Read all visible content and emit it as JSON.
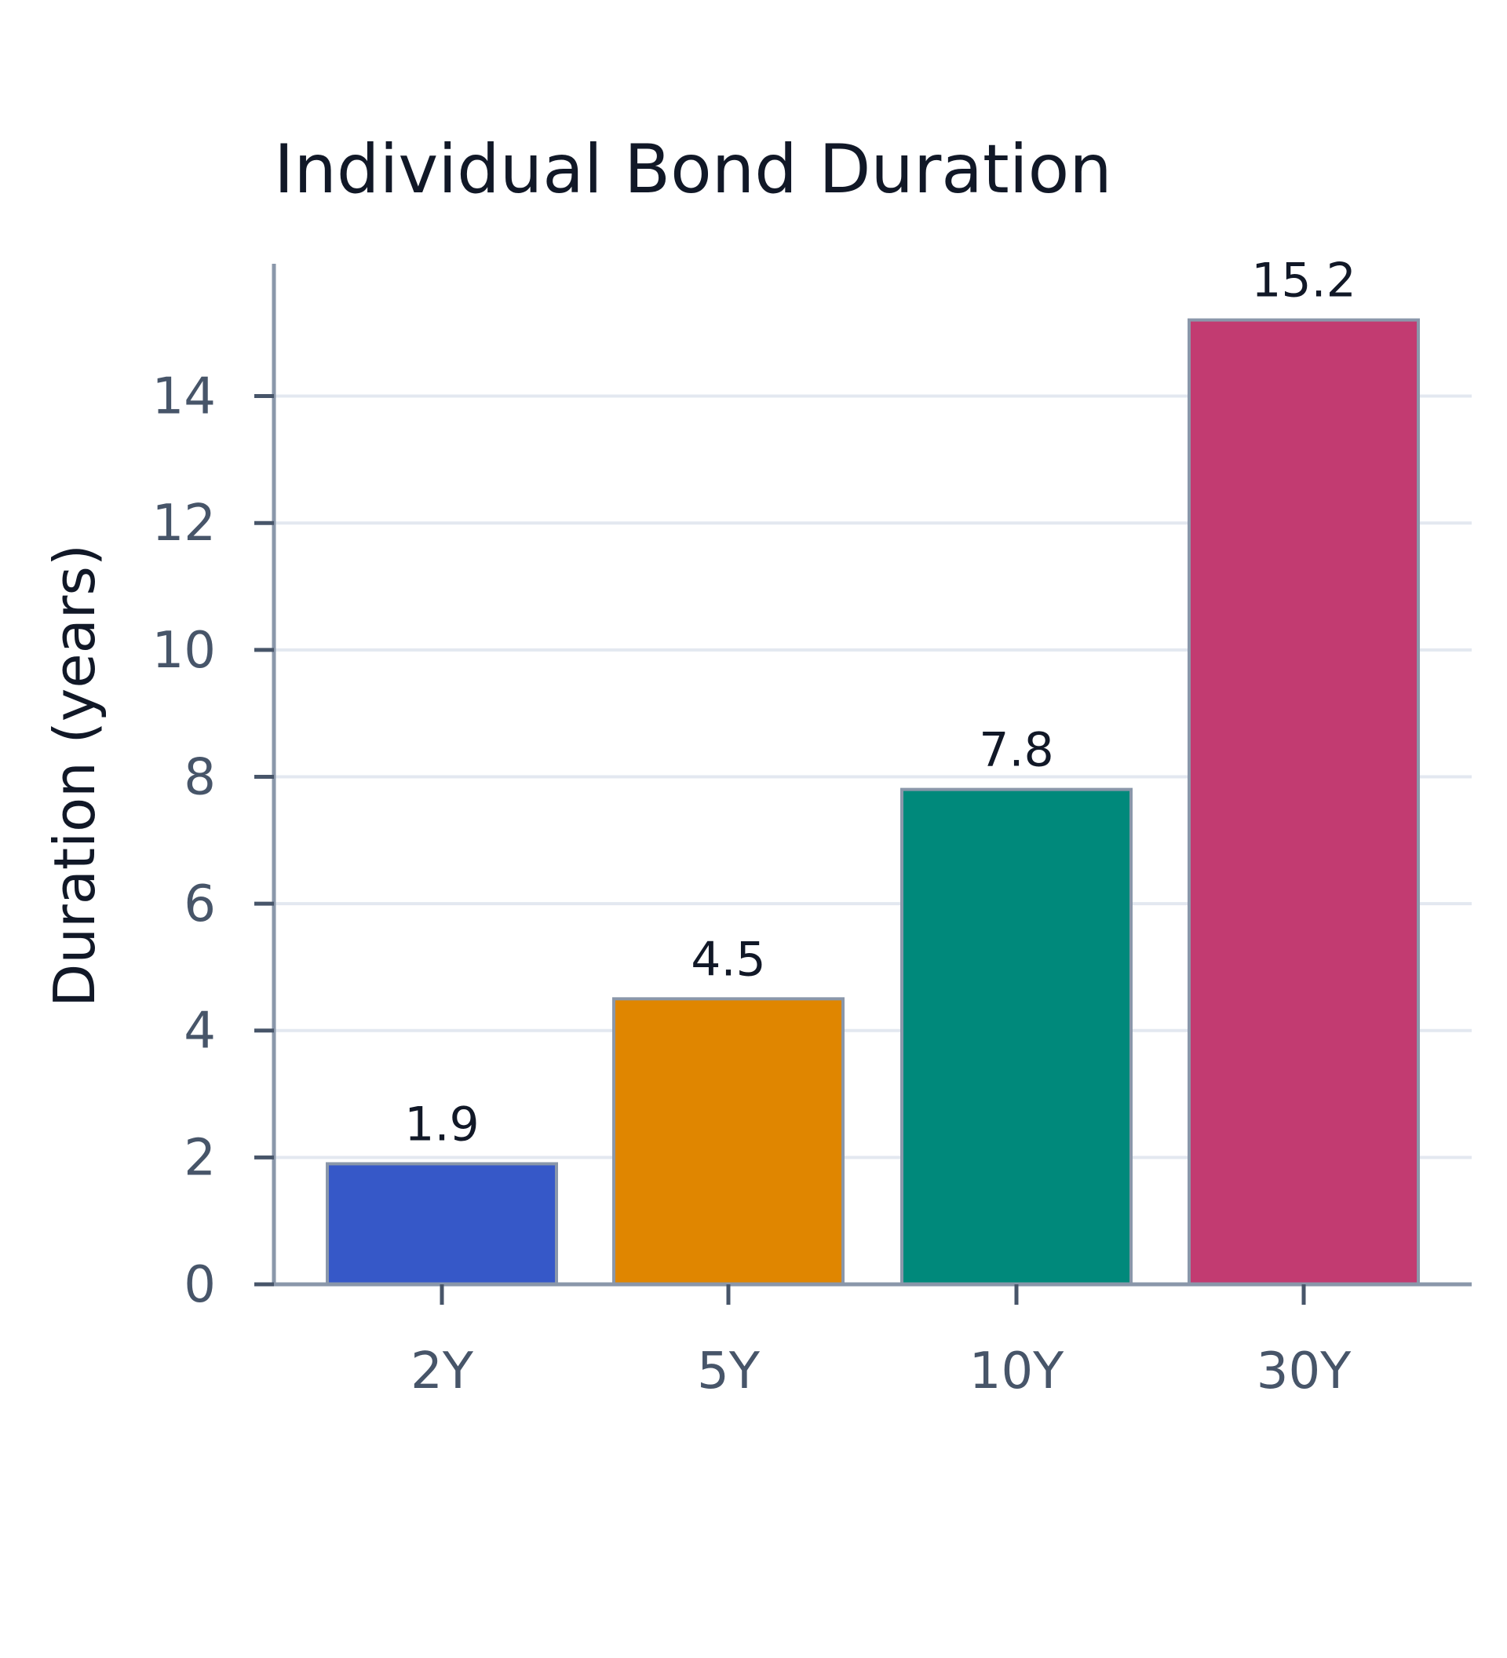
{
  "chart_data": {
    "type": "bar",
    "title": "Individual Bond Duration",
    "xlabel": "",
    "ylabel": "Duration (years)",
    "categories": [
      "2Y",
      "5Y",
      "10Y",
      "30Y"
    ],
    "values": [
      1.9,
      4.5,
      7.8,
      15.2
    ],
    "data_labels": [
      "1.9",
      "4.5",
      "7.8",
      "15.2"
    ],
    "colors": [
      "#3658C8",
      "#E08600",
      "#00897B",
      "#C23B71"
    ],
    "ylim": [
      0,
      15.9
    ],
    "yticks": [
      0,
      2,
      4,
      6,
      8,
      10,
      12,
      14
    ],
    "ytick_labels": [
      "0",
      "2",
      "4",
      "6",
      "8",
      "10",
      "12",
      "14"
    ],
    "grid": true,
    "legend": false
  },
  "style": {
    "axis_color": "#8A97AA",
    "grid_color": "#E3E8F0",
    "bar_edge_color": "#8A97AA"
  }
}
